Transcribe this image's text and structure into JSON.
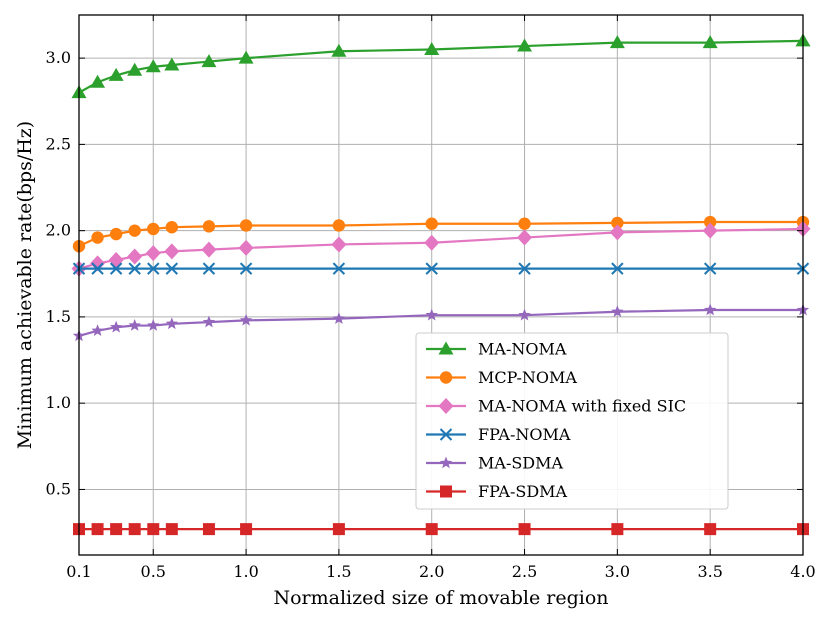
{
  "chart_data": {
    "type": "line",
    "title": "",
    "xlabel": "Normalized size of movable region",
    "ylabel": "Minimum achievable rate(bps/Hz)",
    "xlim": [
      0.1,
      4.0
    ],
    "ylim": [
      0.12,
      3.25
    ],
    "grid": true,
    "legend_position": "center-right",
    "x_ticks": [
      0.1,
      0.5,
      1.0,
      1.5,
      2.0,
      2.5,
      3.0,
      3.5,
      4.0
    ],
    "x_tick_labels": [
      "0.1",
      "0.5",
      "1.0",
      "1.5",
      "2.0",
      "2.5",
      "3.0",
      "3.5",
      "4.0"
    ],
    "y_ticks": [
      0.5,
      1.0,
      1.5,
      2.0,
      2.5,
      3.0
    ],
    "y_tick_labels": [
      "0.5",
      "1.0",
      "1.5",
      "2.0",
      "2.5",
      "3.0"
    ],
    "x": [
      0.1,
      0.2,
      0.3,
      0.4,
      0.5,
      0.6,
      0.8,
      1.0,
      1.5,
      2.0,
      2.5,
      3.0,
      3.5,
      4.0
    ],
    "series": [
      {
        "name": "MA-NOMA",
        "color": "#2ca02c",
        "marker": "triangle",
        "values": [
          2.8,
          2.86,
          2.9,
          2.93,
          2.95,
          2.96,
          2.98,
          3.0,
          3.04,
          3.05,
          3.07,
          3.09,
          3.09,
          3.1
        ]
      },
      {
        "name": "MCP-NOMA",
        "color": "#ff7f0e",
        "marker": "circle",
        "values": [
          1.91,
          1.96,
          1.98,
          2.0,
          2.01,
          2.02,
          2.025,
          2.03,
          2.03,
          2.04,
          2.04,
          2.045,
          2.05,
          2.05
        ]
      },
      {
        "name": "MA-NOMA with fixed SIC",
        "color": "#e377c2",
        "marker": "diamond",
        "values": [
          1.78,
          1.81,
          1.83,
          1.85,
          1.87,
          1.88,
          1.89,
          1.9,
          1.92,
          1.93,
          1.96,
          1.99,
          2.0,
          2.01
        ]
      },
      {
        "name": "FPA-NOMA",
        "color": "#1f77b4",
        "marker": "x",
        "values": [
          1.78,
          1.78,
          1.78,
          1.78,
          1.78,
          1.78,
          1.78,
          1.78,
          1.78,
          1.78,
          1.78,
          1.78,
          1.78,
          1.78
        ]
      },
      {
        "name": "MA-SDMA",
        "color": "#9467bd",
        "marker": "star",
        "values": [
          1.39,
          1.42,
          1.44,
          1.45,
          1.45,
          1.46,
          1.47,
          1.48,
          1.49,
          1.51,
          1.51,
          1.53,
          1.54,
          1.54
        ]
      },
      {
        "name": "FPA-SDMA",
        "color": "#d62728",
        "marker": "square",
        "values": [
          0.27,
          0.27,
          0.27,
          0.27,
          0.27,
          0.27,
          0.27,
          0.27,
          0.27,
          0.27,
          0.27,
          0.27,
          0.27,
          0.27
        ]
      }
    ]
  }
}
